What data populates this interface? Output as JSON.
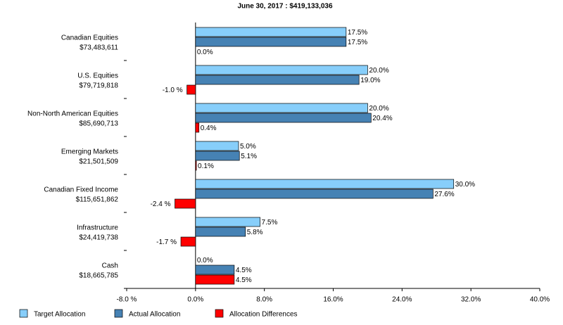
{
  "chart_data": {
    "type": "hbar",
    "title": "June 30, 2017 : $419,133,036",
    "categories": [
      "Canadian Equities",
      "U.S. Equities",
      "Non-North American Equities",
      "Emerging Markets",
      "Canadian Fixed Income",
      "Infrastructure",
      "Cash"
    ],
    "category_values": [
      "$73,483,611",
      "$79,719,818",
      "$85,690,713",
      "$21,501,509",
      "$115,651,862",
      "$24,419,738",
      "$18,665,785"
    ],
    "series": [
      {
        "name": "Target Allocation",
        "color": "#87cefa",
        "values": [
          17.5,
          20.0,
          20.0,
          5.0,
          30.0,
          7.5,
          0.0
        ],
        "value_labels": [
          "17.5%",
          "20.0%",
          "20.0%",
          "5.0%",
          "30.0%",
          "7.5%",
          "0.0%"
        ]
      },
      {
        "name": "Actual Allocation",
        "color": "#4682b4",
        "values": [
          17.5,
          19.0,
          20.4,
          5.1,
          27.6,
          5.8,
          4.5
        ],
        "value_labels": [
          "17.5%",
          "19.0%",
          "20.4%",
          "5.1%",
          "27.6%",
          "5.8%",
          "4.5%"
        ]
      },
      {
        "name": "Allocation Differences",
        "color": "#ff0000",
        "values": [
          0.0,
          -1.0,
          0.4,
          0.1,
          -2.4,
          -1.7,
          4.5
        ],
        "value_labels": [
          "0.0%",
          "-1.0 %",
          "0.4%",
          "0.1%",
          "-2.4 %",
          "-1.7 %",
          "4.5%"
        ]
      }
    ],
    "xlim": [
      -8,
      40
    ],
    "xticks": [
      {
        "value": -8,
        "label": "-8.0 %"
      },
      {
        "value": 0,
        "label": "0.0%"
      },
      {
        "value": 8,
        "label": "8.0%"
      },
      {
        "value": 16,
        "label": "16.0%"
      },
      {
        "value": 24,
        "label": "24.0%"
      },
      {
        "value": 32,
        "label": "32.0%"
      },
      {
        "value": 40,
        "label": "40.0%"
      }
    ],
    "legend": "bottom"
  }
}
